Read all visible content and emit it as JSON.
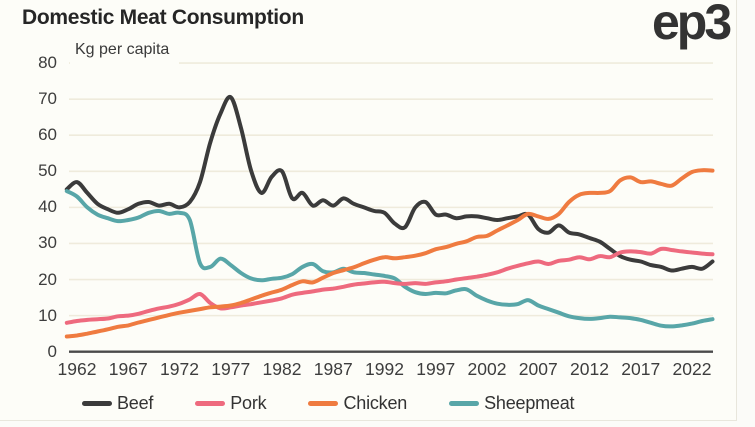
{
  "header": {
    "title": "Domestic Meat Consumption",
    "logo": "ep3"
  },
  "colors": {
    "background": "#fdfdf8",
    "gridline": "#efebdc",
    "axis": "#4a4a4a",
    "tick_text": "#3d3d3d"
  },
  "chart_data": {
    "type": "line",
    "title": "Domestic Meat Consumption",
    "ylabel": "Kg per capita",
    "xlabel": "",
    "ylim": [
      0,
      80
    ],
    "y_ticks": [
      0,
      10,
      20,
      30,
      40,
      50,
      60,
      70,
      80
    ],
    "x_tick_years": [
      1962,
      1967,
      1972,
      1977,
      1982,
      1987,
      1992,
      1997,
      2002,
      2007,
      2012,
      2017,
      2022
    ],
    "grid": "horizontal",
    "legend_position": "bottom",
    "years": [
      1961,
      1962,
      1963,
      1964,
      1965,
      1966,
      1967,
      1968,
      1969,
      1970,
      1971,
      1972,
      1973,
      1974,
      1975,
      1976,
      1977,
      1978,
      1979,
      1980,
      1981,
      1982,
      1983,
      1984,
      1985,
      1986,
      1987,
      1988,
      1989,
      1990,
      1991,
      1992,
      1993,
      1994,
      1995,
      1996,
      1997,
      1998,
      1999,
      2000,
      2001,
      2002,
      2003,
      2004,
      2005,
      2006,
      2007,
      2008,
      2009,
      2010,
      2011,
      2012,
      2013,
      2014,
      2015,
      2016,
      2017,
      2018,
      2019,
      2020,
      2021,
      2022,
      2023,
      2024
    ],
    "series": [
      {
        "name": "Beef",
        "color": "#3b3b3b",
        "values": [
          45,
          47,
          44,
          41,
          39.5,
          38.5,
          39.5,
          41,
          41.5,
          40.5,
          41,
          40,
          41.5,
          47,
          58,
          66,
          70.5,
          62,
          50,
          44,
          48.5,
          50,
          42.5,
          44,
          40.5,
          42,
          40.5,
          42.5,
          41,
          40,
          39,
          38.5,
          35.5,
          34.5,
          40,
          41.5,
          38,
          38,
          37,
          37.5,
          37.5,
          37,
          36.5,
          37,
          37.5,
          38,
          34,
          33,
          35,
          33,
          32.5,
          31.5,
          30.5,
          28.5,
          26.5,
          25.5,
          25,
          24,
          23.5,
          22.5,
          23,
          23.5,
          23,
          25
        ]
      },
      {
        "name": "Pork",
        "color": "#ee6a7e",
        "values": [
          8,
          8.5,
          8.8,
          9,
          9.2,
          9.8,
          10,
          10.5,
          11.3,
          12,
          12.5,
          13.3,
          14.5,
          16,
          13.5,
          12,
          12.3,
          12.8,
          13.2,
          13.7,
          14.2,
          14.8,
          15.8,
          16.3,
          16.7,
          17.2,
          17.5,
          18,
          18.6,
          18.9,
          19.2,
          19.4,
          19,
          18.8,
          19,
          18.8,
          19.2,
          19.5,
          20,
          20.4,
          20.8,
          21.3,
          22,
          23,
          23.8,
          24.5,
          25,
          24.3,
          25.2,
          25.5,
          26.2,
          25.6,
          26.5,
          26.2,
          27.5,
          27.8,
          27.6,
          27.2,
          28.5,
          28.2,
          27.8,
          27.5,
          27.2,
          27
        ]
      },
      {
        "name": "Chicken",
        "color": "#ef7b40",
        "values": [
          4.2,
          4.5,
          5,
          5.6,
          6.2,
          6.9,
          7.3,
          8.1,
          8.8,
          9.5,
          10.2,
          10.8,
          11.3,
          11.8,
          12.3,
          12.5,
          12.8,
          13.5,
          14.5,
          15.5,
          16.4,
          17.2,
          18.5,
          19.5,
          19.2,
          20.5,
          21.8,
          22.6,
          23.4,
          24.5,
          25.5,
          26.2,
          25.9,
          26.2,
          26.6,
          27.3,
          28.4,
          29,
          29.9,
          30.6,
          31.8,
          32.1,
          33.6,
          35,
          36.5,
          38.2,
          37.5,
          36.8,
          38.2,
          41.5,
          43.5,
          44,
          44,
          44.5,
          47.5,
          48.3,
          47,
          47.2,
          46.5,
          46,
          48,
          49.8,
          50.3,
          50.2
        ]
      },
      {
        "name": "Sheepmeat",
        "color": "#58a6a8",
        "values": [
          44.5,
          43,
          40,
          38,
          37,
          36.2,
          36.5,
          37.2,
          38.5,
          39,
          38.2,
          38.5,
          36.5,
          24.5,
          23.5,
          25.8,
          24,
          21.8,
          20.3,
          19.8,
          20.2,
          20.5,
          21.5,
          23.5,
          24.3,
          22.3,
          22,
          23,
          22,
          21.8,
          21.4,
          21,
          20.3,
          18,
          16.5,
          16,
          16.3,
          16.2,
          17,
          17.3,
          15.5,
          14.2,
          13.3,
          13,
          13.2,
          14.3,
          12.8,
          11.8,
          10.8,
          9.8,
          9.3,
          9.1,
          9.3,
          9.7,
          9.5,
          9.3,
          8.8,
          8,
          7.2,
          7,
          7.3,
          7.8,
          8.5,
          9
        ]
      }
    ]
  }
}
